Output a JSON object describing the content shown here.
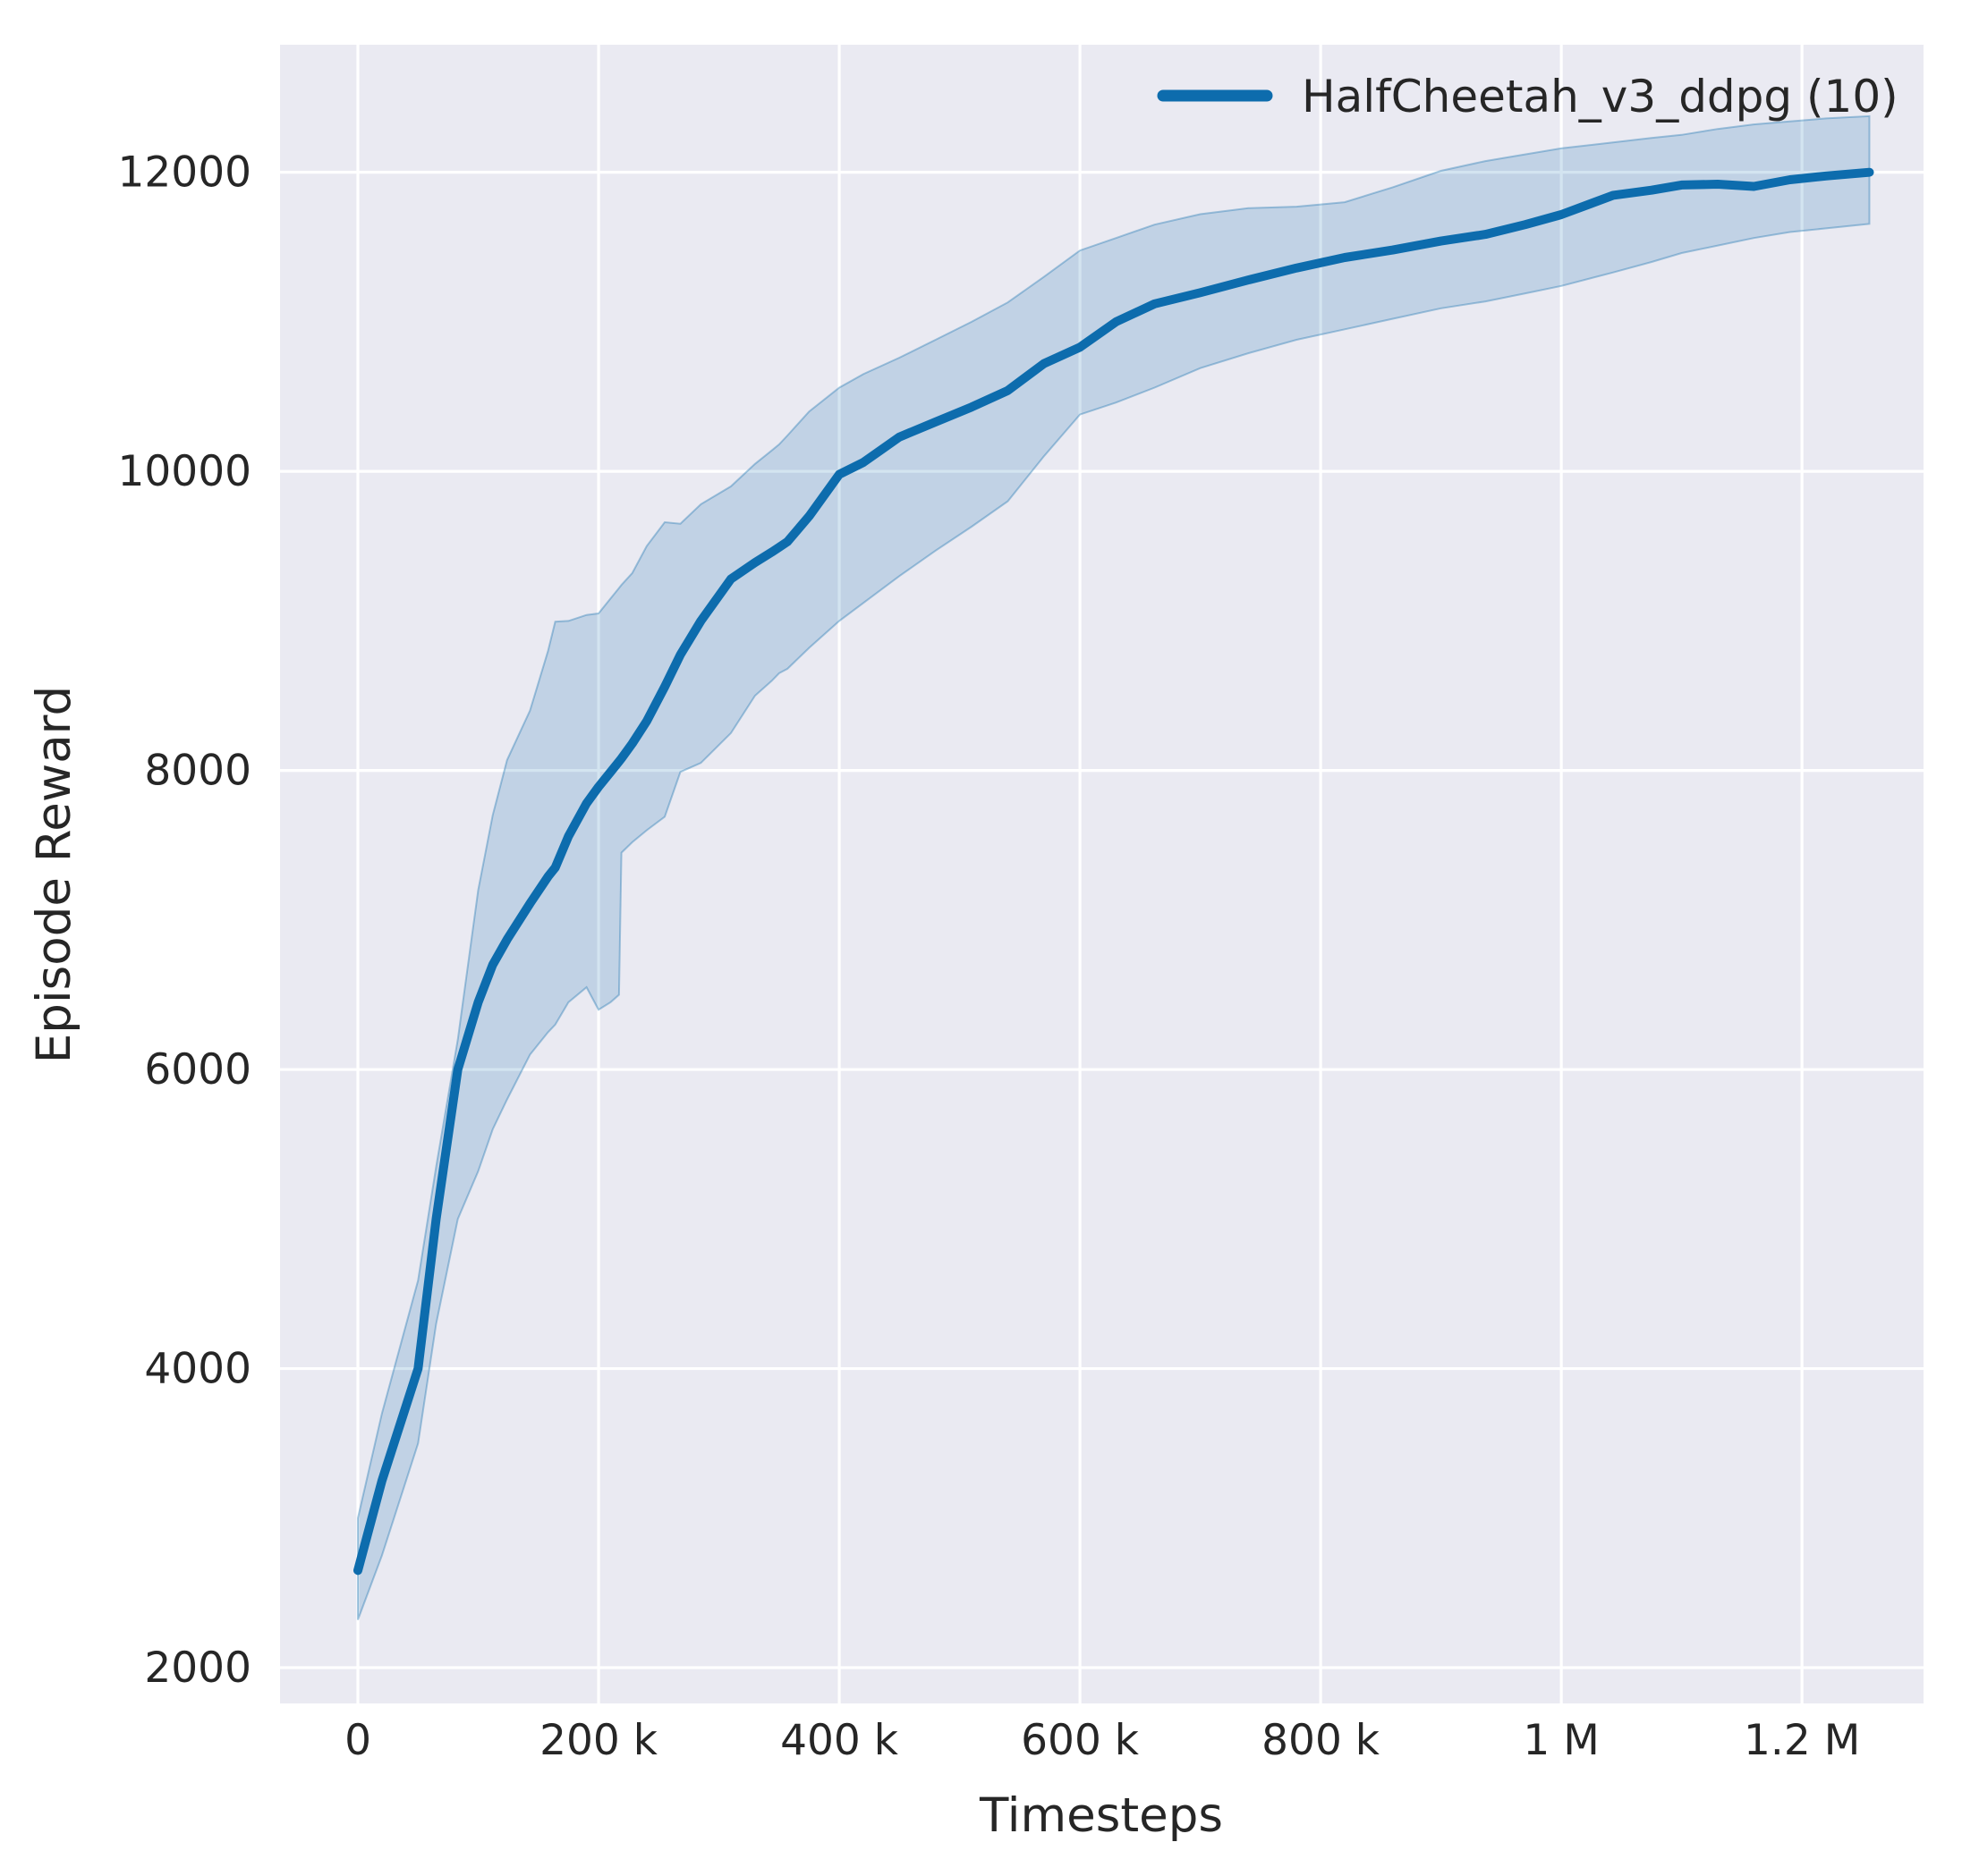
{
  "figure": {
    "background": "#ffffff",
    "plot_background": "#eaeaf2",
    "grid_color": "#ffffff",
    "text_color": "#262626"
  },
  "legend": {
    "label": "HalfCheetah_v3_ddpg (10)",
    "swatch_color": "#0d6cad",
    "position": "upper right"
  },
  "chart_data": {
    "type": "line",
    "title": "",
    "xlabel": "Timesteps",
    "ylabel": "Episode Reward",
    "grid": true,
    "legend_position": "upper right",
    "xlim": [
      -64700,
      1301000
    ],
    "ylim": [
      1761,
      12853
    ],
    "x_ticks": [
      {
        "value": 0,
        "label": "0"
      },
      {
        "value": 200000,
        "label": "200 k"
      },
      {
        "value": 400000,
        "label": "400 k"
      },
      {
        "value": 600000,
        "label": "600 k"
      },
      {
        "value": 800000,
        "label": "800 k"
      },
      {
        "value": 1000000,
        "label": "1 M"
      },
      {
        "value": 1200000,
        "label": "1.2 M"
      }
    ],
    "y_ticks": [
      {
        "value": 2000,
        "label": "2000"
      },
      {
        "value": 4000,
        "label": "4000"
      },
      {
        "value": 6000,
        "label": "6000"
      },
      {
        "value": 8000,
        "label": "8000"
      },
      {
        "value": 10000,
        "label": "10000"
      },
      {
        "value": 12000,
        "label": "12000"
      }
    ],
    "series": [
      {
        "name": "HalfCheetah_v3_ddpg (10)",
        "color": "#0d6cad",
        "band_fill_opacity": 0.18,
        "band_edge_opacity": 0.35,
        "x": [
          0,
          20000,
          50000,
          65000,
          83000,
          100000,
          112000,
          124000,
          143000,
          158000,
          164000,
          175000,
          190000,
          200000,
          210000,
          217000,
          219000,
          228000,
          240000,
          255000,
          268000,
          285000,
          310000,
          330000,
          344000,
          350000,
          357000,
          375000,
          400000,
          420000,
          450000,
          480000,
          510000,
          540000,
          570000,
          600000,
          630000,
          662000,
          700000,
          740000,
          780000,
          820000,
          860000,
          900000,
          937000,
          970000,
          1000000,
          1043000,
          1075000,
          1100000,
          1130000,
          1160000,
          1190000,
          1220000,
          1256000
        ],
        "mean": [
          2650,
          3250,
          4000,
          5000,
          6000,
          6450,
          6700,
          6870,
          7110,
          7290,
          7350,
          7560,
          7780,
          7890,
          7990,
          8060,
          8080,
          8180,
          8330,
          8560,
          8774,
          9000,
          9280,
          9390,
          9460,
          9492,
          9530,
          9700,
          9980,
          10060,
          10230,
          10330,
          10430,
          10540,
          10720,
          10830,
          11000,
          11120,
          11195,
          11280,
          11360,
          11430,
          11480,
          11540,
          11585,
          11650,
          11717,
          11846,
          11880,
          11915,
          11920,
          11905,
          11950,
          11975,
          12000
        ],
        "lo": [
          2320,
          2750,
          3500,
          4300,
          5000,
          5320,
          5600,
          5800,
          6100,
          6250,
          6300,
          6450,
          6550,
          6400,
          6450,
          6500,
          7450,
          7520,
          7600,
          7690,
          7990,
          8050,
          8250,
          8500,
          8600,
          8650,
          8680,
          8820,
          9000,
          9120,
          9300,
          9470,
          9630,
          9800,
          10100,
          10380,
          10460,
          10560,
          10690,
          10790,
          10880,
          10950,
          11020,
          11090,
          11136,
          11190,
          11240,
          11330,
          11400,
          11460,
          11510,
          11560,
          11600,
          11625,
          11655
        ],
        "hi": [
          3000,
          3700,
          4590,
          5350,
          6200,
          7200,
          7700,
          8070,
          8400,
          8800,
          8995,
          9000,
          9040,
          9050,
          9150,
          9220,
          9240,
          9320,
          9500,
          9660,
          9650,
          9780,
          9900,
          10050,
          10140,
          10180,
          10240,
          10400,
          10560,
          10650,
          10760,
          10880,
          11000,
          11130,
          11300,
          11477,
          11560,
          11650,
          11720,
          11760,
          11770,
          11800,
          11900,
          12010,
          12075,
          12120,
          12160,
          12200,
          12230,
          12250,
          12290,
          12320,
          12340,
          12360,
          12375
        ]
      }
    ]
  }
}
